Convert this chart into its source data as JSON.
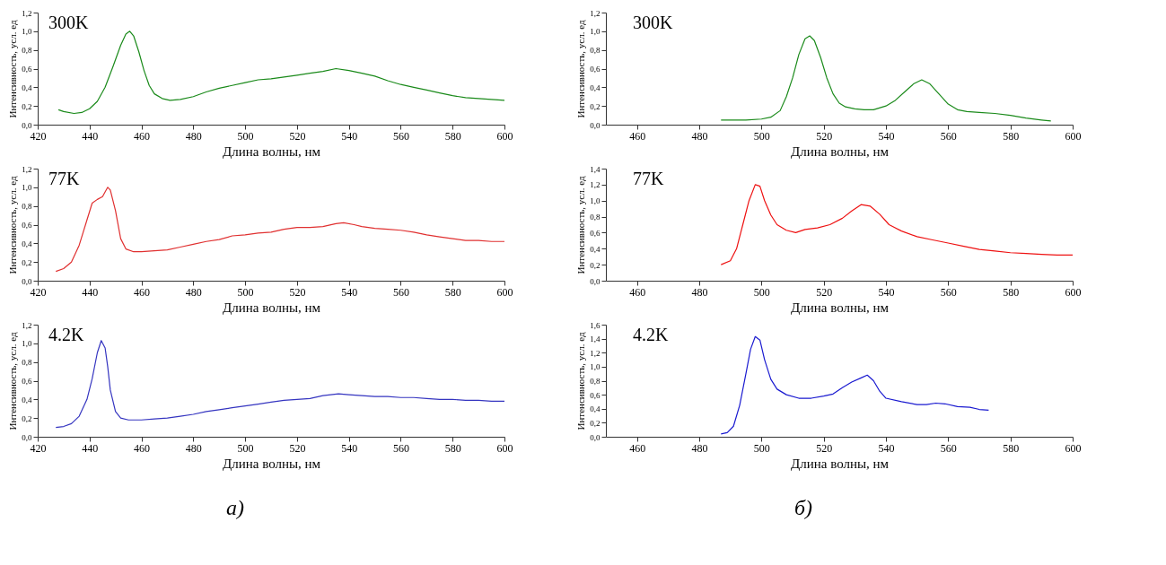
{
  "chart_data": [
    {
      "type": "line",
      "xlabel": "Длина волны, нм",
      "ylabel": "Интенсивность, усл. ед",
      "annotations": [
        "300K"
      ],
      "grid": false,
      "xlim": [
        420,
        600
      ],
      "xticks": [
        420,
        440,
        460,
        480,
        500,
        520,
        540,
        560,
        580,
        600
      ],
      "ylim": [
        0,
        1.2
      ],
      "yticks": [
        {
          "value": 0,
          "label": "0,0"
        },
        {
          "value": 0.2,
          "label": "0,2"
        },
        {
          "value": 0.4,
          "label": "0,4"
        },
        {
          "value": 0.6,
          "label": "0,6"
        },
        {
          "value": 0.8,
          "label": "0,8"
        },
        {
          "value": 1.0,
          "label": "1,0"
        },
        {
          "value": 1.2,
          "label": "1,2"
        }
      ],
      "x": [
        428,
        430,
        434,
        437,
        440,
        443,
        446,
        449,
        452,
        454,
        455.5,
        457,
        459,
        461,
        463,
        465,
        468,
        471,
        475,
        480,
        485,
        490,
        495,
        500,
        505,
        510,
        515,
        520,
        525,
        530,
        535,
        540,
        545,
        550,
        555,
        560,
        565,
        570,
        575,
        580,
        585,
        590,
        595,
        600
      ],
      "series": [
        {
          "color": "#1a8a1a",
          "values": [
            0.16,
            0.14,
            0.12,
            0.13,
            0.17,
            0.25,
            0.4,
            0.62,
            0.85,
            0.97,
            1.0,
            0.95,
            0.78,
            0.58,
            0.42,
            0.33,
            0.28,
            0.26,
            0.27,
            0.3,
            0.35,
            0.39,
            0.42,
            0.45,
            0.48,
            0.49,
            0.51,
            0.53,
            0.55,
            0.57,
            0.6,
            0.58,
            0.55,
            0.52,
            0.47,
            0.43,
            0.4,
            0.37,
            0.34,
            0.31,
            0.29,
            0.28,
            0.27,
            0.26
          ]
        }
      ]
    },
    {
      "type": "line",
      "xlabel": "Длина волны, нм",
      "ylabel": "Интенсивность, усл. ед",
      "annotations": [
        "300K"
      ],
      "grid": false,
      "xlim": [
        450,
        600
      ],
      "xticks": [
        460,
        480,
        500,
        520,
        540,
        560,
        580,
        600
      ],
      "ylim": [
        0,
        1.2
      ],
      "yticks": [
        {
          "value": 0,
          "label": "0,0"
        },
        {
          "value": 0.2,
          "label": "0,2"
        },
        {
          "value": 0.4,
          "label": "0,4"
        },
        {
          "value": 0.6,
          "label": "0,6"
        },
        {
          "value": 0.8,
          "label": "0,8"
        },
        {
          "value": 1.0,
          "label": "1,0"
        },
        {
          "value": 1.2,
          "label": "1,2"
        }
      ],
      "x": [
        487,
        490,
        495,
        500,
        503,
        506,
        508,
        510,
        512,
        514,
        515.5,
        517,
        519,
        521,
        523,
        525,
        527,
        530,
        533,
        536,
        540,
        543,
        546,
        549,
        551.5,
        554,
        557,
        560,
        563,
        566,
        570,
        575,
        580,
        585,
        590,
        593
      ],
      "series": [
        {
          "color": "#1a8a1a",
          "values": [
            0.05,
            0.05,
            0.05,
            0.06,
            0.08,
            0.15,
            0.3,
            0.5,
            0.75,
            0.92,
            0.95,
            0.9,
            0.72,
            0.5,
            0.33,
            0.23,
            0.19,
            0.17,
            0.16,
            0.16,
            0.2,
            0.26,
            0.35,
            0.44,
            0.48,
            0.44,
            0.33,
            0.22,
            0.16,
            0.14,
            0.13,
            0.12,
            0.1,
            0.07,
            0.05,
            0.04
          ]
        }
      ]
    },
    {
      "type": "line",
      "xlabel": "Длина волны, нм",
      "ylabel": "Интенсивность, усл. ед",
      "annotations": [
        "77K"
      ],
      "grid": false,
      "xlim": [
        420,
        600
      ],
      "xticks": [
        420,
        440,
        460,
        480,
        500,
        520,
        540,
        560,
        580,
        600
      ],
      "ylim": [
        0,
        1.2
      ],
      "yticks": [
        {
          "value": 0,
          "label": "0,0"
        },
        {
          "value": 0.2,
          "label": "0,2"
        },
        {
          "value": 0.4,
          "label": "0,4"
        },
        {
          "value": 0.6,
          "label": "0,6"
        },
        {
          "value": 0.8,
          "label": "0,8"
        },
        {
          "value": 1.0,
          "label": "1,0"
        },
        {
          "value": 1.2,
          "label": "1,2"
        }
      ],
      "x": [
        427,
        430,
        433,
        436,
        439,
        441,
        443,
        445,
        447,
        448,
        450,
        452,
        454,
        457,
        460,
        465,
        470,
        475,
        480,
        485,
        490,
        495,
        500,
        505,
        510,
        515,
        520,
        525,
        530,
        535,
        538,
        542,
        545,
        550,
        555,
        560,
        565,
        570,
        575,
        580,
        585,
        590,
        595,
        600
      ],
      "series": [
        {
          "color": "#e03030",
          "values": [
            0.1,
            0.13,
            0.2,
            0.38,
            0.65,
            0.83,
            0.87,
            0.9,
            1.0,
            0.97,
            0.75,
            0.45,
            0.34,
            0.31,
            0.31,
            0.32,
            0.33,
            0.36,
            0.39,
            0.42,
            0.44,
            0.48,
            0.49,
            0.51,
            0.52,
            0.55,
            0.57,
            0.57,
            0.58,
            0.61,
            0.62,
            0.6,
            0.58,
            0.56,
            0.55,
            0.54,
            0.52,
            0.49,
            0.47,
            0.45,
            0.43,
            0.43,
            0.42,
            0.42
          ]
        }
      ]
    },
    {
      "type": "line",
      "xlabel": "Длина волны, нм",
      "ylabel": "Интенсивность, усл. ед",
      "annotations": [
        "77K"
      ],
      "grid": false,
      "xlim": [
        450,
        600
      ],
      "xticks": [
        460,
        480,
        500,
        520,
        540,
        560,
        580,
        600
      ],
      "ylim": [
        0,
        1.4
      ],
      "yticks": [
        {
          "value": 0,
          "label": "0,0"
        },
        {
          "value": 0.2,
          "label": "0,2"
        },
        {
          "value": 0.4,
          "label": "0,4"
        },
        {
          "value": 0.6,
          "label": "0,6"
        },
        {
          "value": 0.8,
          "label": "0,8"
        },
        {
          "value": 1.0,
          "label": "1,0"
        },
        {
          "value": 1.2,
          "label": "1,2"
        },
        {
          "value": 1.4,
          "label": "1,4"
        }
      ],
      "x": [
        487,
        490,
        492,
        494,
        496,
        498,
        499.5,
        501,
        503,
        505,
        508,
        511,
        514,
        518,
        522,
        526,
        529,
        532,
        535,
        538,
        541,
        545,
        550,
        555,
        560,
        565,
        570,
        575,
        580,
        585,
        590,
        595,
        600
      ],
      "series": [
        {
          "color": "#ee1111",
          "values": [
            0.2,
            0.25,
            0.4,
            0.7,
            1.0,
            1.2,
            1.18,
            1.0,
            0.82,
            0.7,
            0.63,
            0.6,
            0.64,
            0.66,
            0.7,
            0.78,
            0.87,
            0.95,
            0.93,
            0.83,
            0.7,
            0.62,
            0.55,
            0.51,
            0.47,
            0.43,
            0.39,
            0.37,
            0.35,
            0.34,
            0.33,
            0.32,
            0.32
          ]
        }
      ]
    },
    {
      "type": "line",
      "xlabel": "Длина волны, нм",
      "ylabel": "Интенсивность, усл. ед",
      "annotations": [
        "4.2K",
        "а)"
      ],
      "grid": false,
      "xlim": [
        420,
        600
      ],
      "xticks": [
        420,
        440,
        460,
        480,
        500,
        520,
        540,
        560,
        580,
        600
      ],
      "ylim": [
        0,
        1.2
      ],
      "yticks": [
        {
          "value": 0,
          "label": "0,0"
        },
        {
          "value": 0.2,
          "label": "0,2"
        },
        {
          "value": 0.4,
          "label": "0,4"
        },
        {
          "value": 0.6,
          "label": "0,6"
        },
        {
          "value": 0.8,
          "label": "0,8"
        },
        {
          "value": 1.0,
          "label": "1,0"
        },
        {
          "value": 1.2,
          "label": "1,2"
        }
      ],
      "x": [
        427,
        430,
        433,
        436,
        439,
        441,
        443,
        444.5,
        446,
        447,
        448,
        450,
        452,
        455,
        460,
        465,
        470,
        475,
        480,
        485,
        490,
        495,
        500,
        505,
        510,
        515,
        520,
        525,
        530,
        536,
        540,
        545,
        550,
        555,
        560,
        565,
        570,
        575,
        580,
        585,
        590,
        595,
        600
      ],
      "series": [
        {
          "color": "#3535c0",
          "values": [
            0.1,
            0.11,
            0.14,
            0.22,
            0.4,
            0.62,
            0.9,
            1.03,
            0.95,
            0.75,
            0.5,
            0.27,
            0.2,
            0.18,
            0.18,
            0.19,
            0.2,
            0.22,
            0.24,
            0.27,
            0.29,
            0.31,
            0.33,
            0.35,
            0.37,
            0.39,
            0.4,
            0.41,
            0.44,
            0.46,
            0.45,
            0.44,
            0.43,
            0.43,
            0.42,
            0.42,
            0.41,
            0.4,
            0.4,
            0.39,
            0.39,
            0.38,
            0.38
          ]
        }
      ]
    },
    {
      "type": "line",
      "xlabel": "Длина волны, нм",
      "ylabel": "Интенсивность, усл. ед",
      "annotations": [
        "4.2K",
        "б)"
      ],
      "grid": false,
      "xlim": [
        450,
        600
      ],
      "xticks": [
        460,
        480,
        500,
        520,
        540,
        560,
        580,
        600
      ],
      "ylim": [
        0,
        1.6
      ],
      "yticks": [
        {
          "value": 0,
          "label": "0,0"
        },
        {
          "value": 0.2,
          "label": "0,2"
        },
        {
          "value": 0.4,
          "label": "0,4"
        },
        {
          "value": 0.6,
          "label": "0,6"
        },
        {
          "value": 0.8,
          "label": "0,8"
        },
        {
          "value": 1.0,
          "label": "1,0"
        },
        {
          "value": 1.2,
          "label": "1,2"
        },
        {
          "value": 1.4,
          "label": "1,4"
        },
        {
          "value": 1.6,
          "label": "1,6"
        }
      ],
      "x": [
        487,
        489,
        491,
        493,
        495,
        496.5,
        498,
        499.5,
        501,
        503,
        505,
        508,
        512,
        516,
        520,
        523,
        526,
        529,
        532,
        534,
        536,
        538,
        540,
        545,
        550,
        553,
        556,
        559,
        563,
        567,
        570,
        573
      ],
      "series": [
        {
          "color": "#1a1ad0",
          "values": [
            0.04,
            0.06,
            0.15,
            0.45,
            0.9,
            1.25,
            1.43,
            1.38,
            1.1,
            0.82,
            0.68,
            0.6,
            0.55,
            0.55,
            0.58,
            0.61,
            0.7,
            0.78,
            0.84,
            0.88,
            0.8,
            0.65,
            0.55,
            0.5,
            0.46,
            0.46,
            0.48,
            0.47,
            0.43,
            0.42,
            0.39,
            0.38
          ]
        }
      ]
    }
  ]
}
